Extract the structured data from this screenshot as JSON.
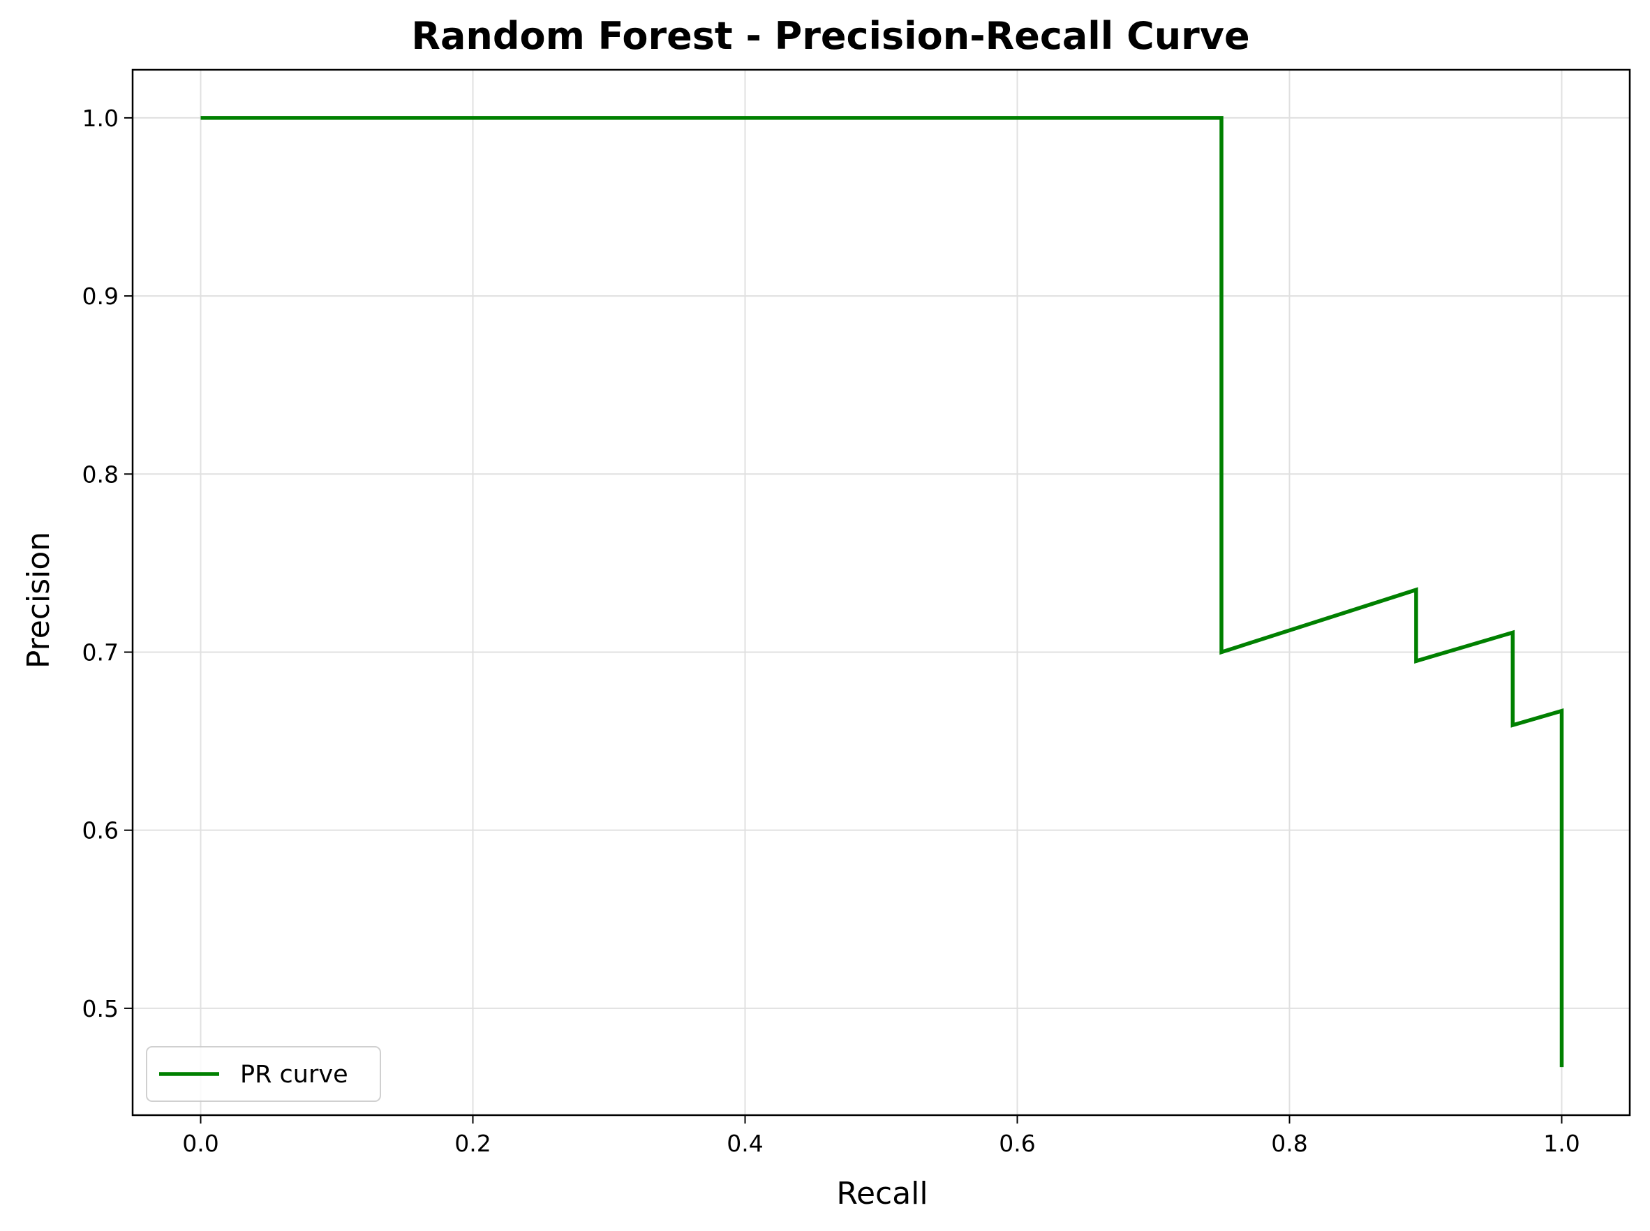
{
  "chart_data": {
    "type": "line",
    "title": "Random Forest - Precision-Recall Curve",
    "xlabel": "Recall",
    "ylabel": "Precision",
    "xlim": [
      -0.05,
      1.05
    ],
    "ylim": [
      0.44,
      1.027
    ],
    "x_ticks": [
      0.0,
      0.2,
      0.4,
      0.6,
      0.8,
      1.0
    ],
    "x_tick_labels": [
      "0.0",
      "0.2",
      "0.4",
      "0.6",
      "0.8",
      "1.0"
    ],
    "y_ticks": [
      0.5,
      0.6,
      0.7,
      0.8,
      0.9,
      1.0
    ],
    "y_tick_labels": [
      "0.5",
      "0.6",
      "0.7",
      "0.8",
      "0.9",
      "1.0"
    ],
    "grid": true,
    "legend_position": "lower-left",
    "series": [
      {
        "name": "PR curve",
        "color": "#008000",
        "x": [
          0.0,
          0.75,
          0.75,
          0.893,
          0.893,
          0.964,
          0.964,
          1.0,
          1.0
        ],
        "y": [
          1.0,
          1.0,
          0.7,
          0.735,
          0.695,
          0.711,
          0.659,
          0.667,
          0.467
        ]
      }
    ]
  }
}
